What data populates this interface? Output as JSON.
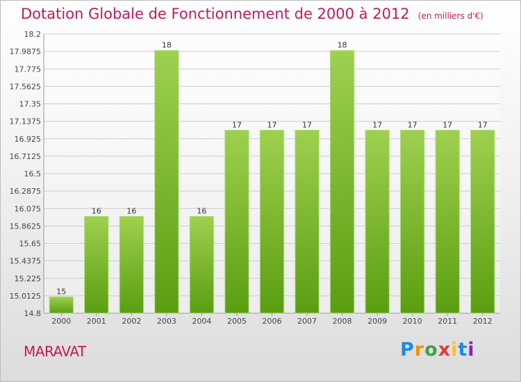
{
  "header": {
    "title": "Dotation Globale de Fonctionnement de 2000 à 2012",
    "subtitle": "(en milliers d'€)"
  },
  "footer": {
    "commune": "MARAVAT",
    "logo": [
      "P",
      "r",
      "o",
      "x",
      "i",
      "t",
      "i"
    ]
  },
  "colors": {
    "bar_top": "#9ed04f",
    "bar_bottom": "#5a9e10",
    "grid": "#cccccc",
    "title": "#c2185b"
  },
  "chart_data": {
    "type": "bar",
    "title": "Dotation Globale de Fonctionnement de 2000 à 2012",
    "subtitle": "(en milliers d'€)",
    "categories": [
      "2000",
      "2001",
      "2002",
      "2003",
      "2004",
      "2005",
      "2006",
      "2007",
      "2008",
      "2009",
      "2010",
      "2011",
      "2012"
    ],
    "values": [
      15,
      16,
      16,
      18,
      16,
      17,
      17,
      17,
      18,
      17,
      17,
      17,
      17
    ],
    "plot_values": [
      15,
      15.98,
      15.98,
      18,
      15.98,
      17.03,
      17.03,
      17.03,
      18,
      17.03,
      17.03,
      17.03,
      17.03
    ],
    "ylim": [
      14.8,
      18.2
    ],
    "yticks": [
      "14.8",
      "15.0125",
      "15.225",
      "15.4375",
      "15.65",
      "15.8625",
      "16.075",
      "16.2875",
      "16.5",
      "16.7125",
      "16.925",
      "17.1375",
      "17.35",
      "17.5625",
      "17.775",
      "17.9875",
      "18.2"
    ],
    "grid": true,
    "legend": "none"
  }
}
